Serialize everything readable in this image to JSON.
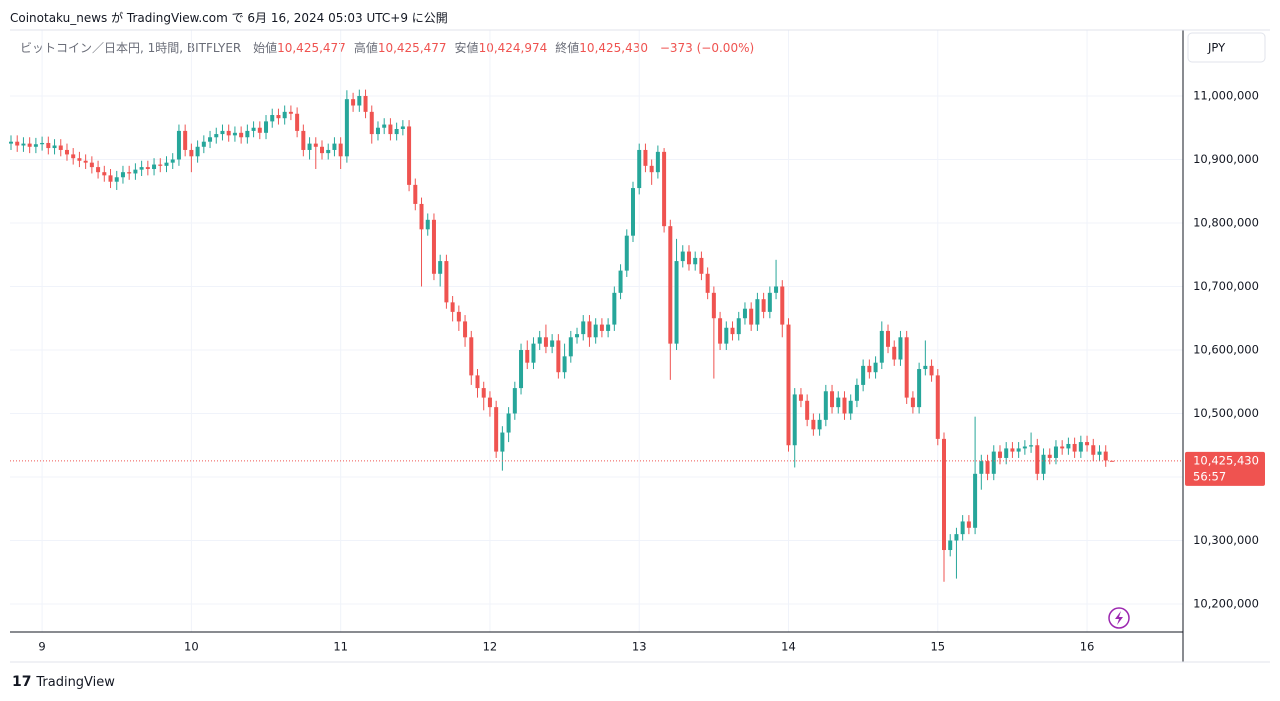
{
  "source": "Coinotaku_news が TradingView.com で 6月 16, 2024 05:03 UTC+9 に公開",
  "footer": "TradingView",
  "chart_data": {
    "type": "candlestick",
    "title": "ビットコイン／日本円, 1時間, BITFLYER",
    "ohlc_legend": [
      {
        "label": "始値",
        "value": "10,425,477"
      },
      {
        "label": "高値",
        "value": "10,425,477"
      },
      {
        "label": "安値",
        "value": "10,424,974"
      },
      {
        "label": "終値",
        "value": "10,425,430"
      }
    ],
    "change": "−373 (−0.00%)",
    "currency": "JPY",
    "up_color": "#26a69a",
    "down_color": "#ef5350",
    "last_price": {
      "value": 10425430,
      "label": "10,425,430"
    },
    "countdown": "56:57",
    "ylim": [
      10155900,
      11103900
    ],
    "yticks": [
      {
        "value": 10200000,
        "label": "10,200,000"
      },
      {
        "value": 10300000,
        "label": "10,300,000"
      },
      {
        "value": 10400000,
        "label": "10,400,000"
      },
      {
        "value": 10500000,
        "label": "10,500,000"
      },
      {
        "value": 10600000,
        "label": "10,600,000"
      },
      {
        "value": 10700000,
        "label": "10,700,000"
      },
      {
        "value": 10800000,
        "label": "10,800,000"
      },
      {
        "value": 10900000,
        "label": "10,900,000"
      },
      {
        "value": 11000000,
        "label": "11,000,000"
      }
    ],
    "grid": true,
    "categories": [
      null,
      null,
      null,
      null,
      null,
      "9",
      null,
      null,
      null,
      null,
      null,
      null,
      null,
      null,
      null,
      null,
      null,
      null,
      null,
      null,
      null,
      null,
      null,
      null,
      null,
      null,
      null,
      null,
      null,
      "10",
      null,
      null,
      null,
      null,
      null,
      null,
      null,
      null,
      null,
      null,
      null,
      null,
      null,
      null,
      null,
      null,
      null,
      null,
      null,
      null,
      null,
      null,
      null,
      "11",
      null,
      null,
      null,
      null,
      null,
      null,
      null,
      null,
      null,
      null,
      null,
      null,
      null,
      null,
      null,
      null,
      null,
      null,
      null,
      null,
      null,
      null,
      null,
      "12",
      null,
      null,
      null,
      null,
      null,
      null,
      null,
      null,
      null,
      null,
      null,
      null,
      null,
      null,
      null,
      null,
      null,
      null,
      null,
      null,
      null,
      null,
      null,
      "13",
      null,
      null,
      null,
      null,
      null,
      null,
      null,
      null,
      null,
      null,
      null,
      null,
      null,
      null,
      null,
      null,
      null,
      null,
      null,
      null,
      null,
      null,
      null,
      "14",
      null,
      null,
      null,
      null,
      null,
      null,
      null,
      null,
      null,
      null,
      null,
      null,
      null,
      null,
      null,
      null,
      null,
      null,
      null,
      null,
      null,
      null,
      null,
      "15",
      null,
      null,
      null,
      null,
      null,
      null,
      null,
      null,
      null,
      null,
      null,
      null,
      null,
      null,
      null,
      null,
      null,
      null,
      null,
      null,
      null,
      null,
      null,
      "16",
      null,
      null,
      null,
      null
    ],
    "open": [
      10925000,
      10928000,
      10922000,
      10925000,
      10920000,
      10924000,
      10926000,
      10918000,
      10922000,
      10915000,
      10908000,
      10902000,
      10898000,
      10895000,
      10888000,
      10880000,
      10875000,
      10865000,
      10872000,
      10880000,
      10878000,
      10884000,
      10888000,
      10885000,
      10892000,
      10890000,
      10895000,
      10900000,
      10945000,
      10915000,
      10905000,
      10920000,
      10928000,
      10935000,
      10940000,
      10945000,
      10938000,
      10942000,
      10935000,
      10945000,
      10950000,
      10942000,
      10960000,
      10970000,
      10965000,
      10975000,
      10972000,
      10945000,
      10915000,
      10925000,
      10920000,
      10910000,
      10915000,
      10925000,
      10905000,
      10995000,
      10985000,
      11000000,
      10975000,
      10940000,
      10950000,
      10955000,
      10940000,
      10948000,
      10952000,
      10860000,
      10830000,
      10790000,
      10805000,
      10720000,
      10740000,
      10675000,
      10660000,
      10645000,
      10620000,
      10560000,
      10540000,
      10525000,
      10510000,
      10440000,
      10470000,
      10500000,
      10540000,
      10600000,
      10580000,
      10610000,
      10620000,
      10605000,
      10615000,
      10565000,
      10590000,
      10620000,
      10625000,
      10645000,
      10620000,
      10640000,
      10630000,
      10640000,
      10690000,
      10725000,
      10780000,
      10855000,
      10915000,
      10890000,
      10880000,
      10912000,
      10795000,
      10610000,
      10740000,
      10755000,
      10735000,
      10745000,
      10720000,
      10690000,
      10650000,
      10610000,
      10635000,
      10625000,
      10650000,
      10665000,
      10640000,
      10680000,
      10660000,
      10690000,
      10700000,
      10640000,
      10450000,
      10530000,
      10520000,
      10490000,
      10475000,
      10490000,
      10535000,
      10510000,
      10525000,
      10500000,
      10520000,
      10545000,
      10575000,
      10565000,
      10580000,
      10630000,
      10605000,
      10585000,
      10620000,
      10525000,
      10510000,
      10570000,
      10575000,
      10560000,
      10460000,
      10285000,
      10300000,
      10310000,
      10330000,
      10320000,
      10405000,
      10425000,
      10405000,
      10440000,
      10430000,
      10445000,
      10440000,
      10445000,
      10448000,
      10450000,
      10405000,
      10435000,
      10430000,
      10448000,
      10445000,
      10452000,
      10440000,
      10455000,
      10450000,
      10435000,
      10440000,
      10425477
    ],
    "high": [
      10938000,
      10938000,
      10935000,
      10935000,
      10934000,
      10936000,
      10936000,
      10932000,
      10932000,
      10925000,
      10918000,
      10912000,
      10908000,
      10905000,
      10898000,
      10890000,
      10885000,
      10882000,
      10890000,
      10890000,
      10894000,
      10898000,
      10898000,
      10902000,
      10902000,
      10905000,
      10910000,
      10955000,
      10955000,
      10925000,
      10930000,
      10938000,
      10945000,
      10950000,
      10955000,
      10955000,
      10952000,
      10952000,
      10955000,
      10960000,
      10960000,
      10970000,
      10980000,
      10980000,
      10985000,
      10985000,
      10982000,
      10955000,
      10935000,
      10935000,
      10930000,
      10925000,
      10935000,
      10935000,
      11009000,
      11005000,
      11010000,
      11010000,
      10985000,
      10960000,
      10965000,
      10965000,
      10958000,
      10962000,
      10962000,
      10870000,
      10840000,
      10815000,
      10815000,
      10750000,
      10750000,
      10685000,
      10670000,
      10655000,
      10630000,
      10570000,
      10550000,
      10535000,
      10520000,
      10480000,
      10510000,
      10550000,
      10610000,
      10615000,
      10620000,
      10630000,
      10640000,
      10625000,
      10625000,
      10610000,
      10630000,
      10635000,
      10655000,
      10655000,
      10650000,
      10650000,
      10650000,
      10700000,
      10735000,
      10790000,
      10865000,
      10925000,
      10925000,
      10900000,
      10922000,
      10918000,
      10805000,
      10775000,
      10765000,
      10765000,
      10755000,
      10755000,
      10730000,
      10700000,
      10660000,
      10645000,
      10645000,
      10660000,
      10675000,
      10675000,
      10690000,
      10690000,
      10700000,
      10742000,
      10710000,
      10650000,
      10540000,
      10540000,
      10530000,
      10500000,
      10500000,
      10545000,
      10545000,
      10535000,
      10535000,
      10530000,
      10555000,
      10585000,
      10585000,
      10590000,
      10645000,
      10640000,
      10615000,
      10630000,
      10630000,
      10535000,
      10580000,
      10615000,
      10585000,
      10570000,
      10470000,
      10310000,
      10320000,
      10340000,
      10340000,
      10495000,
      10435000,
      10435000,
      10450000,
      10450000,
      10455000,
      10455000,
      10455000,
      10458000,
      10470000,
      10460000,
      10445000,
      10445000,
      10458000,
      10458000,
      10462000,
      10462000,
      10465000,
      10465000,
      10460000,
      10450000,
      10450000,
      10425477
    ],
    "low": [
      10915000,
      10912000,
      10912000,
      10910000,
      10910000,
      10914000,
      10908000,
      10908000,
      10905000,
      10898000,
      10892000,
      10888000,
      10885000,
      10878000,
      10870000,
      10865000,
      10855000,
      10852000,
      10862000,
      10868000,
      10868000,
      10874000,
      10875000,
      10875000,
      10880000,
      10880000,
      10885000,
      10890000,
      10905000,
      10880000,
      10895000,
      10910000,
      10918000,
      10925000,
      10930000,
      10928000,
      10928000,
      10925000,
      10925000,
      10935000,
      10932000,
      10932000,
      10950000,
      10955000,
      10955000,
      10962000,
      10935000,
      10905000,
      10900000,
      10885000,
      10900000,
      10900000,
      10905000,
      10885000,
      10895000,
      10975000,
      10975000,
      10965000,
      10925000,
      10930000,
      10940000,
      10930000,
      10930000,
      10938000,
      10850000,
      10820000,
      10700000,
      10780000,
      10710000,
      10700000,
      10665000,
      10645000,
      10630000,
      10605000,
      10545000,
      10525000,
      10505000,
      10495000,
      10430000,
      10410000,
      10455000,
      10490000,
      10530000,
      10570000,
      10570000,
      10600000,
      10595000,
      10595000,
      10555000,
      10555000,
      10580000,
      10610000,
      10615000,
      10605000,
      10610000,
      10620000,
      10620000,
      10630000,
      10680000,
      10715000,
      10770000,
      10845000,
      10880000,
      10860000,
      10870000,
      10785000,
      10553000,
      10600000,
      10730000,
      10725000,
      10725000,
      10710000,
      10680000,
      10555000,
      10600000,
      10600000,
      10615000,
      10615000,
      10640000,
      10630000,
      10630000,
      10650000,
      10650000,
      10680000,
      10620000,
      10440000,
      10415000,
      10510000,
      10480000,
      10465000,
      10465000,
      10480000,
      10500000,
      10500000,
      10490000,
      10490000,
      10510000,
      10535000,
      10555000,
      10555000,
      10570000,
      10595000,
      10575000,
      10575000,
      10515000,
      10500000,
      10500000,
      10560000,
      10550000,
      10450000,
      10235000,
      10275000,
      10240000,
      10300000,
      10310000,
      10310000,
      10380000,
      10395000,
      10395000,
      10420000,
      10420000,
      10430000,
      10430000,
      10435000,
      10438000,
      10395000,
      10395000,
      10420000,
      10420000,
      10435000,
      10435000,
      10430000,
      10430000,
      10440000,
      10425000,
      10425000,
      10416000,
      10424974
    ],
    "close": [
      10928000,
      10922000,
      10925000,
      10920000,
      10924000,
      10926000,
      10918000,
      10922000,
      10915000,
      10908000,
      10902000,
      10898000,
      10895000,
      10888000,
      10880000,
      10875000,
      10865000,
      10872000,
      10880000,
      10878000,
      10884000,
      10888000,
      10885000,
      10892000,
      10890000,
      10895000,
      10900000,
      10945000,
      10915000,
      10905000,
      10920000,
      10928000,
      10935000,
      10940000,
      10945000,
      10938000,
      10942000,
      10935000,
      10945000,
      10950000,
      10942000,
      10960000,
      10970000,
      10965000,
      10975000,
      10972000,
      10945000,
      10915000,
      10925000,
      10920000,
      10910000,
      10915000,
      10925000,
      10905000,
      10995000,
      10985000,
      11000000,
      10975000,
      10940000,
      10950000,
      10955000,
      10940000,
      10948000,
      10952000,
      10860000,
      10830000,
      10790000,
      10805000,
      10720000,
      10740000,
      10675000,
      10660000,
      10645000,
      10620000,
      10560000,
      10540000,
      10525000,
      10510000,
      10440000,
      10470000,
      10500000,
      10540000,
      10600000,
      10580000,
      10610000,
      10620000,
      10605000,
      10615000,
      10565000,
      10590000,
      10620000,
      10625000,
      10645000,
      10620000,
      10640000,
      10630000,
      10640000,
      10690000,
      10725000,
      10780000,
      10855000,
      10915000,
      10890000,
      10880000,
      10912000,
      10795000,
      10610000,
      10740000,
      10755000,
      10735000,
      10745000,
      10720000,
      10690000,
      10650000,
      10610000,
      10635000,
      10625000,
      10650000,
      10665000,
      10640000,
      10680000,
      10660000,
      10690000,
      10700000,
      10640000,
      10450000,
      10530000,
      10520000,
      10490000,
      10475000,
      10490000,
      10535000,
      10510000,
      10525000,
      10500000,
      10520000,
      10545000,
      10575000,
      10565000,
      10580000,
      10630000,
      10605000,
      10585000,
      10620000,
      10525000,
      10510000,
      10570000,
      10575000,
      10560000,
      10460000,
      10285000,
      10300000,
      10310000,
      10330000,
      10320000,
      10405000,
      10425000,
      10405000,
      10440000,
      10430000,
      10445000,
      10440000,
      10445000,
      10448000,
      10450000,
      10405000,
      10435000,
      10430000,
      10448000,
      10445000,
      10452000,
      10440000,
      10455000,
      10450000,
      10435000,
      10440000,
      10426000,
      10425430
    ]
  }
}
